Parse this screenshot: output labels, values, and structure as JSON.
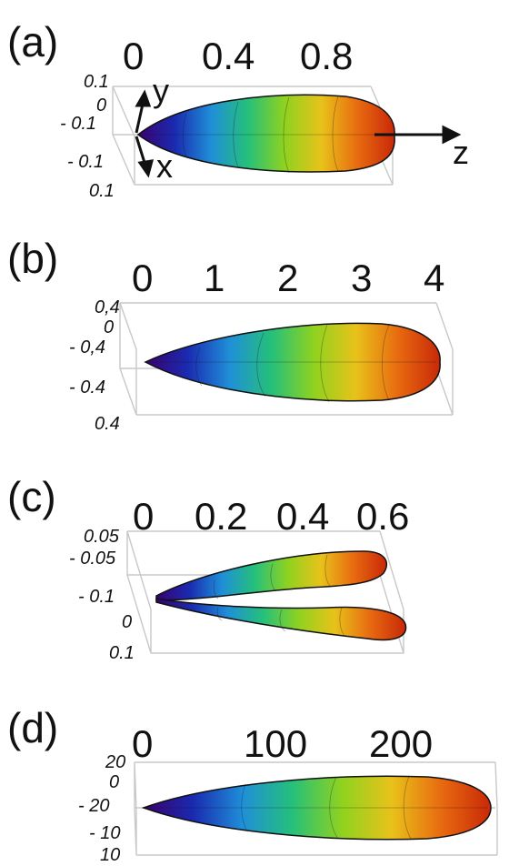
{
  "colors": {
    "gradient": [
      "#3a0070",
      "#1a2ab0",
      "#1f8fd8",
      "#25c07a",
      "#8fd21f",
      "#e8c21a",
      "#e86a10",
      "#c82808"
    ],
    "outline": "#111111",
    "box": "#c8c8c8"
  },
  "panels": [
    {
      "id": "a",
      "label": "(a)",
      "top_ticks": [
        "0",
        "0.4",
        "0.8"
      ],
      "side_ticks": [
        "0.1",
        "0",
        "- 0.1",
        "- 0.1",
        "0.1"
      ],
      "axes": {
        "y": "y",
        "x": "x",
        "z": "z"
      }
    },
    {
      "id": "b",
      "label": "(b)",
      "top_ticks": [
        "0",
        "1",
        "2",
        "3",
        "4"
      ],
      "side_ticks": [
        "0,4",
        "0",
        "- 0,4",
        "- 0.4",
        "0.4"
      ]
    },
    {
      "id": "c",
      "label": "(c)",
      "top_ticks": [
        "0",
        "0.2",
        "0.4",
        "0.6"
      ],
      "side_ticks": [
        "0.05",
        "- 0.05",
        "- 0.1",
        "0",
        "0.1"
      ]
    },
    {
      "id": "d",
      "label": "(d)",
      "top_ticks": [
        "0",
        "100",
        "200"
      ],
      "side_ticks": [
        "20",
        "0",
        "- 20",
        "- 10",
        "10"
      ]
    }
  ]
}
